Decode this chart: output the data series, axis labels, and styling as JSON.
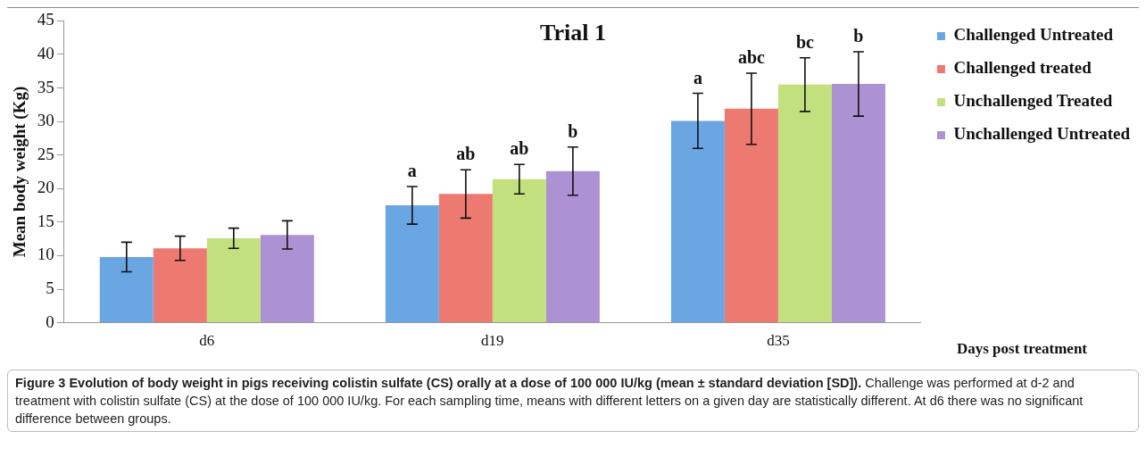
{
  "chart_data": {
    "type": "bar",
    "title": "Trial 1",
    "ylabel": "Mean body weight (Kg)",
    "xlabel": "Days post treatment",
    "categories": [
      "d6",
      "d19",
      "d35"
    ],
    "series": [
      {
        "name": "Challenged Untreated",
        "color": "#6aa6e2",
        "values": [
          9.8,
          17.5,
          30.1
        ],
        "errors": [
          2.2,
          2.8,
          4.1
        ],
        "value_labels": [
          null,
          "a",
          "a"
        ]
      },
      {
        "name": "Challenged treated",
        "color": "#ec7a70",
        "values": [
          11.1,
          19.2,
          31.9
        ],
        "errors": [
          1.8,
          3.6,
          5.3
        ],
        "value_labels": [
          null,
          "ab",
          "abc"
        ]
      },
      {
        "name": "Unchallenged Treated",
        "color": "#c3e07e",
        "values": [
          12.6,
          21.4,
          35.5
        ],
        "errors": [
          1.5,
          2.2,
          4.0
        ],
        "value_labels": [
          null,
          "ab",
          "bc"
        ]
      },
      {
        "name": "Unchallenged Untreated",
        "color": "#ac92d2",
        "values": [
          13.1,
          22.6,
          35.6
        ],
        "errors": [
          2.1,
          3.6,
          4.8
        ],
        "value_labels": [
          null,
          "b",
          "b"
        ]
      }
    ],
    "ylim": [
      0,
      45
    ],
    "yticks": [
      0,
      5,
      10,
      15,
      20,
      25,
      30,
      35,
      40,
      45
    ],
    "grid": false,
    "legend": "right",
    "annotations": [
      "Figure 3  Evolution of body weight in pigs receiving colistin sulfate (CS) orally at a dose of 100 000 IU/kg (mean ± standard deviation [SD]).",
      "Challenge was performed at d-2 and treatment with colistin sulfate (CS) at the dose of 100 000 IU/kg. For each sampling time, means with different letters on a given day are statistically different. At d6 there was no significant difference between groups."
    ]
  }
}
